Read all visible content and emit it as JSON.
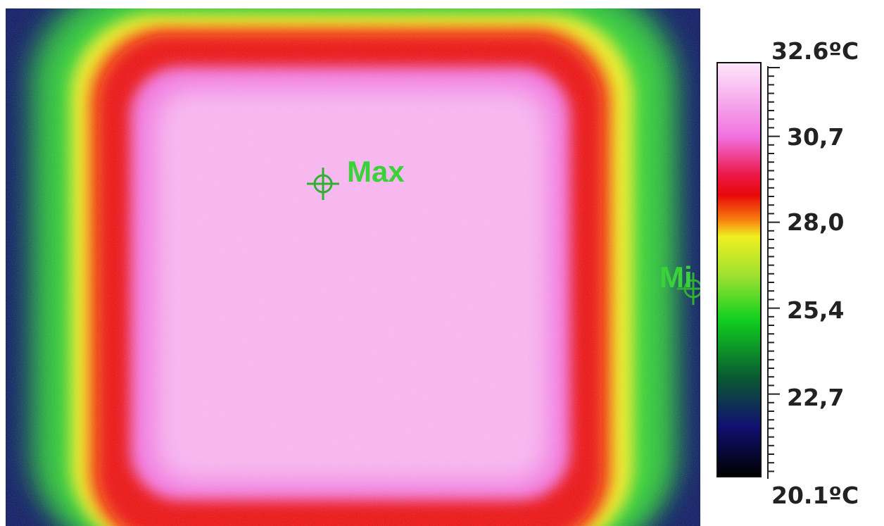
{
  "image": {
    "markers": [
      {
        "label": "Max"
      },
      {
        "label": "Mi"
      }
    ]
  },
  "scale": {
    "max_label": "32.6ºC",
    "ticks": [
      "30,7",
      "28,0",
      "25,4",
      "22,7"
    ],
    "min_label": "20.1ºC"
  }
}
